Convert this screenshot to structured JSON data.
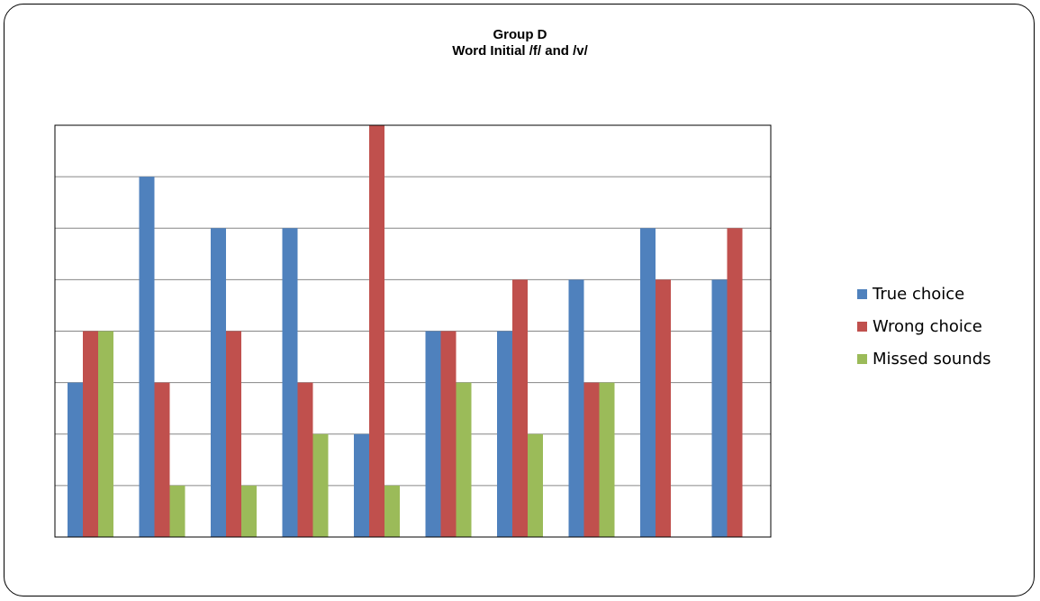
{
  "chart_data": {
    "type": "bar",
    "title": "Group D",
    "subtitle": "Word Initial /f/ and /v/",
    "categories": [
      "",
      "",
      "",
      "",
      "",
      "",
      "",
      "",
      "",
      ""
    ],
    "series": [
      {
        "name": "True choice",
        "color": "#4F81BD",
        "values": [
          3,
          7,
          6,
          6,
          2,
          4,
          4,
          5,
          6,
          5
        ]
      },
      {
        "name": "Wrong choice",
        "color": "#C0504D",
        "values": [
          4,
          3,
          4,
          3,
          8,
          4,
          5,
          3,
          5,
          6
        ]
      },
      {
        "name": "Missed sounds",
        "color": "#9BBB59",
        "values": [
          4,
          1,
          1,
          2,
          1,
          3,
          2,
          3,
          0,
          0
        ]
      }
    ],
    "ylim": [
      0,
      8
    ],
    "ytick_step": 1,
    "grid": true,
    "legend_position": "right"
  }
}
